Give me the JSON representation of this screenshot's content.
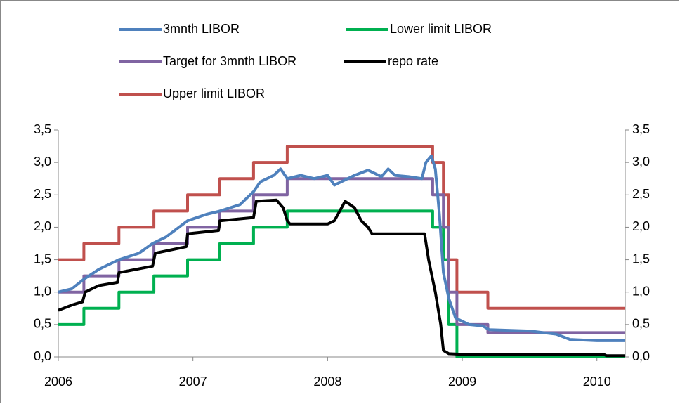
{
  "chart_data": {
    "type": "line",
    "xlim": [
      2006,
      2010.21
    ],
    "xticks": [
      2006,
      2007,
      2008,
      2009,
      2010
    ],
    "ylim": [
      0,
      3.5
    ],
    "yticks": [
      {
        "value": 0,
        "label": "0,0"
      },
      {
        "value": 0.5,
        "label": "0,5"
      },
      {
        "value": 1,
        "label": "1,0"
      },
      {
        "value": 1.5,
        "label": "1,5"
      },
      {
        "value": 2,
        "label": "2,0"
      },
      {
        "value": 2.5,
        "label": "2,5"
      },
      {
        "value": 3,
        "label": "3,0"
      },
      {
        "value": 3.5,
        "label": "3,5"
      }
    ],
    "y2lim": [
      0,
      3.5
    ],
    "y2ticks": [
      {
        "value": 0,
        "label": "0,0"
      },
      {
        "value": 0.5,
        "label": "0,5"
      },
      {
        "value": 1,
        "label": "1,0"
      },
      {
        "value": 1.5,
        "label": "1,5"
      },
      {
        "value": 2,
        "label": "2,0"
      },
      {
        "value": 2.5,
        "label": "2,5"
      },
      {
        "value": 3,
        "label": "3,0"
      },
      {
        "value": 3.5,
        "label": "3,5"
      }
    ],
    "grid": false,
    "series": [
      {
        "name": "3mnth LIBOR",
        "color": "#4f81bd",
        "x": [
          2006,
          2006.1,
          2006.19,
          2006.3,
          2006.45,
          2006.6,
          2006.7,
          2006.8,
          2006.96,
          2007.1,
          2007.2,
          2007.35,
          2007.45,
          2007.5,
          2007.6,
          2007.65,
          2007.7,
          2007.8,
          2007.9,
          2008.0,
          2008.05,
          2008.1,
          2008.2,
          2008.3,
          2008.4,
          2008.45,
          2008.5,
          2008.6,
          2008.7,
          2008.73,
          2008.77,
          2008.8,
          2008.83,
          2008.86,
          2008.9,
          2008.95,
          2009.05,
          2009.15,
          2009.2,
          2009.5,
          2009.7,
          2009.8,
          2010.0,
          2010.21
        ],
        "values": [
          1.0,
          1.05,
          1.2,
          1.35,
          1.5,
          1.6,
          1.75,
          1.85,
          2.1,
          2.2,
          2.25,
          2.35,
          2.55,
          2.7,
          2.8,
          2.9,
          2.75,
          2.8,
          2.75,
          2.8,
          2.65,
          2.7,
          2.8,
          2.88,
          2.78,
          2.9,
          2.8,
          2.78,
          2.75,
          3.0,
          3.1,
          2.9,
          2.2,
          1.3,
          0.9,
          0.6,
          0.5,
          0.48,
          0.42,
          0.4,
          0.35,
          0.27,
          0.25,
          0.25
        ]
      },
      {
        "name": "Lower limit LIBOR",
        "color": "#00b050",
        "x": [
          2006,
          2006.19,
          2006.19,
          2006.45,
          2006.45,
          2006.71,
          2006.71,
          2006.96,
          2006.96,
          2007.2,
          2007.2,
          2007.45,
          2007.45,
          2007.7,
          2007.7,
          2008.78,
          2008.78,
          2008.86,
          2008.86,
          2008.9,
          2008.9,
          2008.96,
          2008.96,
          2009.19,
          2009.19,
          2010.21
        ],
        "values": [
          0.5,
          0.5,
          0.75,
          0.75,
          1,
          1,
          1.25,
          1.25,
          1.5,
          1.5,
          1.75,
          1.75,
          2,
          2,
          2.25,
          2.25,
          2,
          2,
          1.5,
          1.5,
          0.5,
          0.5,
          0,
          0,
          0,
          0
        ]
      },
      {
        "name": "Target for 3mnth LIBOR",
        "color": "#8064a2",
        "x": [
          2006,
          2006.19,
          2006.19,
          2006.45,
          2006.45,
          2006.71,
          2006.71,
          2006.96,
          2006.96,
          2007.2,
          2007.2,
          2007.45,
          2007.45,
          2007.7,
          2007.7,
          2008.78,
          2008.78,
          2008.86,
          2008.86,
          2008.9,
          2008.9,
          2008.96,
          2008.96,
          2009.19,
          2009.19,
          2010.21
        ],
        "values": [
          1,
          1,
          1.25,
          1.25,
          1.5,
          1.5,
          1.75,
          1.75,
          2,
          2,
          2.25,
          2.25,
          2.5,
          2.5,
          2.75,
          2.75,
          2.5,
          2.5,
          2,
          2,
          1,
          1,
          0.5,
          0.5,
          0.375,
          0.375
        ]
      },
      {
        "name": "repo rate",
        "color": "#000000",
        "x": [
          2006,
          2006.1,
          2006.18,
          2006.2,
          2006.3,
          2006.44,
          2006.45,
          2006.7,
          2006.72,
          2006.95,
          2006.96,
          2007.19,
          2007.2,
          2007.45,
          2007.47,
          2007.62,
          2007.67,
          2007.7,
          2007.72,
          2008.0,
          2008.05,
          2008.13,
          2008.2,
          2008.25,
          2008.3,
          2008.33,
          2008.72,
          2008.75,
          2008.8,
          2008.84,
          2008.86,
          2008.9,
          2009.0,
          2010.05,
          2010.07,
          2010.21
        ],
        "values": [
          0.72,
          0.8,
          0.85,
          1.0,
          1.1,
          1.15,
          1.3,
          1.4,
          1.6,
          1.7,
          1.9,
          1.95,
          2.1,
          2.15,
          2.4,
          2.42,
          2.3,
          2.1,
          2.05,
          2.05,
          2.1,
          2.4,
          2.3,
          2.1,
          2.0,
          1.9,
          1.9,
          1.5,
          1.0,
          0.5,
          0.1,
          0.05,
          0.04,
          0.04,
          0.02,
          0.02
        ]
      },
      {
        "name": "Upper limit LIBOR",
        "color": "#c0504d",
        "x": [
          2006,
          2006.19,
          2006.19,
          2006.45,
          2006.45,
          2006.71,
          2006.71,
          2006.96,
          2006.96,
          2007.2,
          2007.2,
          2007.45,
          2007.45,
          2007.7,
          2007.7,
          2008.78,
          2008.78,
          2008.86,
          2008.86,
          2008.9,
          2008.9,
          2008.96,
          2008.96,
          2009.19,
          2009.19,
          2010.21
        ],
        "values": [
          1.5,
          1.5,
          1.75,
          1.75,
          2,
          2,
          2.25,
          2.25,
          2.5,
          2.5,
          2.75,
          2.75,
          3,
          3,
          3.25,
          3.25,
          3,
          3,
          2.5,
          2.5,
          1.5,
          1.5,
          1,
          1,
          0.75,
          0.75
        ]
      }
    ]
  }
}
